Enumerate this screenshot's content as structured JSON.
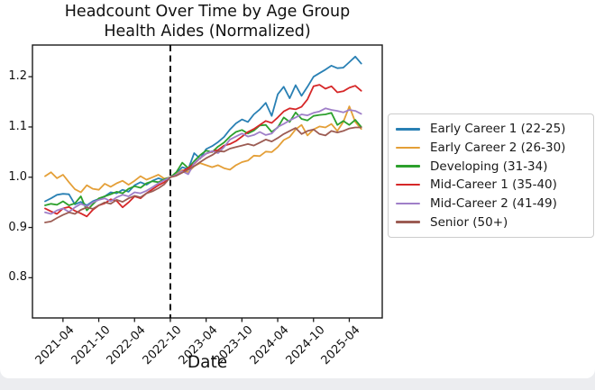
{
  "figure": {
    "title": "Headcount Over Time by Age Group",
    "subtitle": "Health Aides (Normalized)",
    "xlabel": "Date"
  },
  "colors": {
    "axis": "#1a1a1a",
    "vline": "#000000",
    "legend_border": "#cccccc",
    "background": "#ffffff",
    "window_edge": "#ecedf0"
  },
  "chart_data": {
    "type": "line",
    "title": "Headcount Over Time by Age Group",
    "subtitle": "Health Aides (Normalized)",
    "xlabel": "Date",
    "ylabel": "",
    "grid": false,
    "legend_position": "right",
    "ylim": [
      0.72,
      1.263
    ],
    "y_ticks": [
      0.8,
      0.9,
      1.0,
      1.1,
      1.2
    ],
    "y_tick_labels": [
      "0.8",
      "0.9",
      "1.0",
      "1.1",
      "1.2"
    ],
    "x_tick_labels": [
      "2021-04",
      "2021-10",
      "2022-04",
      "2022-10",
      "2023-04",
      "2023-10",
      "2024-04",
      "2024-10",
      "2025-04"
    ],
    "vline": {
      "x": "2022-10",
      "style": "dashed",
      "color": "#000000"
    },
    "x": [
      "2021-01",
      "2021-02",
      "2021-03",
      "2021-04",
      "2021-05",
      "2021-06",
      "2021-07",
      "2021-08",
      "2021-09",
      "2021-10",
      "2021-11",
      "2021-12",
      "2022-01",
      "2022-02",
      "2022-03",
      "2022-04",
      "2022-05",
      "2022-06",
      "2022-07",
      "2022-08",
      "2022-09",
      "2022-10",
      "2022-11",
      "2022-12",
      "2023-01",
      "2023-02",
      "2023-03",
      "2023-04",
      "2023-05",
      "2023-06",
      "2023-07",
      "2023-08",
      "2023-09",
      "2023-10",
      "2023-11",
      "2023-12",
      "2024-01",
      "2024-02",
      "2024-03",
      "2024-04",
      "2024-05",
      "2024-06",
      "2024-07",
      "2024-08",
      "2024-09",
      "2024-10",
      "2024-11",
      "2024-12",
      "2025-01",
      "2025-02",
      "2025-03",
      "2025-04",
      "2025-05",
      "2025-06"
    ],
    "series": [
      {
        "name": "Early Career 1 (22-25)",
        "color": "#2980b4",
        "values": [
          0.952,
          0.958,
          0.965,
          0.967,
          0.966,
          0.946,
          0.951,
          0.944,
          0.952,
          0.957,
          0.962,
          0.97,
          0.968,
          0.975,
          0.971,
          0.984,
          0.99,
          0.985,
          0.993,
          0.998,
          0.994,
          1.0,
          1.008,
          1.02,
          1.016,
          1.048,
          1.037,
          1.056,
          1.062,
          1.07,
          1.08,
          1.095,
          1.107,
          1.115,
          1.11,
          1.125,
          1.135,
          1.148,
          1.122,
          1.165,
          1.18,
          1.157,
          1.183,
          1.162,
          1.18,
          1.2,
          1.207,
          1.214,
          1.222,
          1.217,
          1.218,
          1.229,
          1.24,
          1.226
        ]
      },
      {
        "name": "Early Career 2 (26-30)",
        "color": "#e49f37",
        "values": [
          1.002,
          1.01,
          0.998,
          1.005,
          0.99,
          0.976,
          0.97,
          0.984,
          0.977,
          0.975,
          0.987,
          0.981,
          0.988,
          0.993,
          0.985,
          0.993,
          1.002,
          0.995,
          1.0,
          1.005,
          0.997,
          1.0,
          1.006,
          1.014,
          1.01,
          1.022,
          1.028,
          1.024,
          1.02,
          1.024,
          1.018,
          1.015,
          1.024,
          1.03,
          1.033,
          1.043,
          1.042,
          1.051,
          1.05,
          1.06,
          1.074,
          1.08,
          1.095,
          1.104,
          1.083,
          1.095,
          1.101,
          1.099,
          1.106,
          1.092,
          1.11,
          1.141,
          1.11,
          1.096
        ]
      },
      {
        "name": "Developing (31-34)",
        "color": "#2ca02c",
        "values": [
          0.944,
          0.947,
          0.945,
          0.952,
          0.944,
          0.948,
          0.962,
          0.934,
          0.946,
          0.958,
          0.962,
          0.966,
          0.971,
          0.968,
          0.977,
          0.982,
          0.979,
          0.988,
          0.992,
          0.99,
          0.996,
          1.0,
          1.01,
          1.029,
          1.018,
          1.032,
          1.044,
          1.053,
          1.05,
          1.061,
          1.069,
          1.081,
          1.09,
          1.094,
          1.087,
          1.093,
          1.103,
          1.104,
          1.09,
          1.099,
          1.119,
          1.11,
          1.129,
          1.116,
          1.113,
          1.122,
          1.124,
          1.125,
          1.128,
          1.104,
          1.112,
          1.104,
          1.114,
          1.1
        ]
      },
      {
        "name": "Mid-Career 1 (35-40)",
        "color": "#d62728",
        "values": [
          0.938,
          0.932,
          0.927,
          0.938,
          0.941,
          0.933,
          0.928,
          0.922,
          0.935,
          0.944,
          0.948,
          0.956,
          0.953,
          0.94,
          0.95,
          0.962,
          0.958,
          0.968,
          0.976,
          0.984,
          0.99,
          1.0,
          1.004,
          1.012,
          1.018,
          1.027,
          1.038,
          1.047,
          1.051,
          1.054,
          1.063,
          1.066,
          1.072,
          1.081,
          1.09,
          1.096,
          1.104,
          1.112,
          1.108,
          1.119,
          1.131,
          1.137,
          1.135,
          1.14,
          1.155,
          1.181,
          1.184,
          1.176,
          1.181,
          1.169,
          1.171,
          1.178,
          1.182,
          1.172
        ]
      },
      {
        "name": "Mid-Career 2 (41-49)",
        "color": "#9f7fc8",
        "values": [
          0.93,
          0.927,
          0.934,
          0.938,
          0.931,
          0.94,
          0.947,
          0.942,
          0.95,
          0.955,
          0.958,
          0.952,
          0.96,
          0.965,
          0.962,
          0.97,
          0.968,
          0.973,
          0.98,
          0.988,
          0.994,
          1.0,
          1.005,
          1.012,
          1.006,
          1.028,
          1.038,
          1.047,
          1.052,
          1.048,
          1.06,
          1.075,
          1.081,
          1.087,
          1.081,
          1.084,
          1.09,
          1.084,
          1.087,
          1.1,
          1.106,
          1.113,
          1.119,
          1.125,
          1.123,
          1.128,
          1.131,
          1.137,
          1.134,
          1.132,
          1.129,
          1.134,
          1.132,
          1.126
        ]
      },
      {
        "name": "Senior (50+)",
        "color": "#9c5c53",
        "values": [
          0.91,
          0.912,
          0.919,
          0.925,
          0.93,
          0.927,
          0.935,
          0.94,
          0.937,
          0.944,
          0.95,
          0.947,
          0.955,
          0.951,
          0.958,
          0.963,
          0.96,
          0.968,
          0.972,
          0.978,
          0.986,
          1.0,
          1.003,
          1.009,
          1.015,
          1.022,
          1.03,
          1.038,
          1.044,
          1.052,
          1.051,
          1.057,
          1.06,
          1.063,
          1.066,
          1.063,
          1.069,
          1.075,
          1.071,
          1.078,
          1.086,
          1.092,
          1.098,
          1.086,
          1.092,
          1.095,
          1.086,
          1.083,
          1.092,
          1.089,
          1.092,
          1.097,
          1.099,
          1.099
        ]
      }
    ]
  }
}
